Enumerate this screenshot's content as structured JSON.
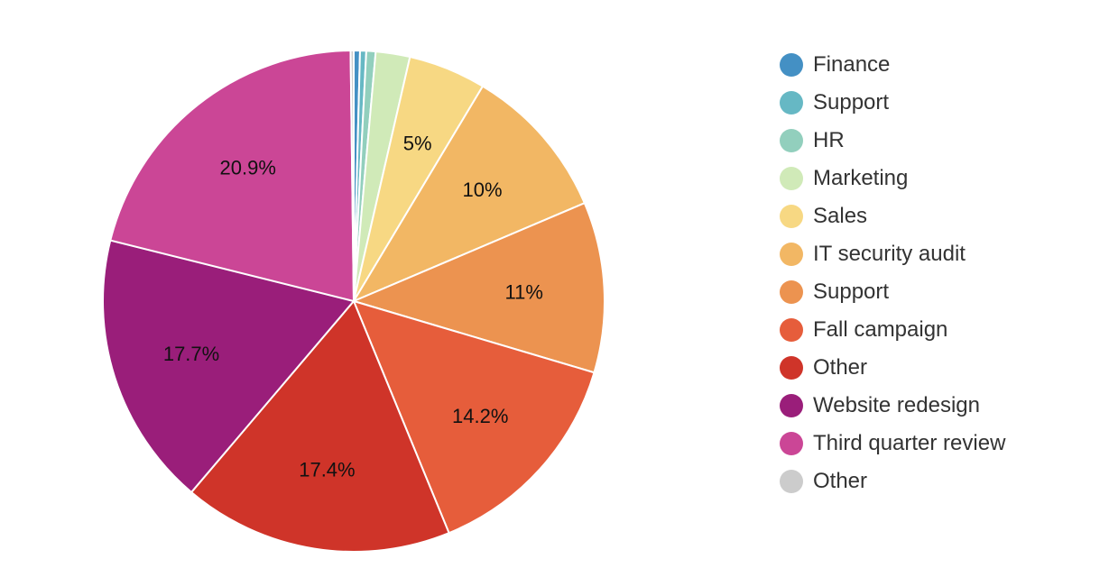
{
  "chart_data": {
    "type": "pie",
    "title": "",
    "label_threshold": 5,
    "slices": [
      {
        "label": "Finance",
        "value": 0.4,
        "color": "#4490c4"
      },
      {
        "label": "Support",
        "value": 0.4,
        "color": "#66b8c4"
      },
      {
        "label": "HR",
        "value": 0.6,
        "color": "#92cfbd"
      },
      {
        "label": "Marketing",
        "value": 2.2,
        "color": "#d0eab8"
      },
      {
        "label": "Sales",
        "value": 5,
        "color": "#f7d883",
        "display": "5%"
      },
      {
        "label": "IT security audit",
        "value": 10,
        "color": "#f2b764",
        "display": "10%"
      },
      {
        "label": "Support",
        "value": 11,
        "color": "#ec9350",
        "display": "11%"
      },
      {
        "label": "Fall campaign",
        "value": 14.2,
        "color": "#e65d3b",
        "display": "14.2%"
      },
      {
        "label": "Other",
        "value": 17.4,
        "color": "#cf3429",
        "display": "17.4%"
      },
      {
        "label": "Website redesign",
        "value": 17.7,
        "color": "#9a1e7a",
        "display": "17.7%"
      },
      {
        "label": "Third quarter review",
        "value": 20.9,
        "color": "#cb4696",
        "display": "20.9%"
      },
      {
        "label": "Other",
        "value": 0.2,
        "color": "#cccccc"
      }
    ],
    "legend_position": "right"
  }
}
